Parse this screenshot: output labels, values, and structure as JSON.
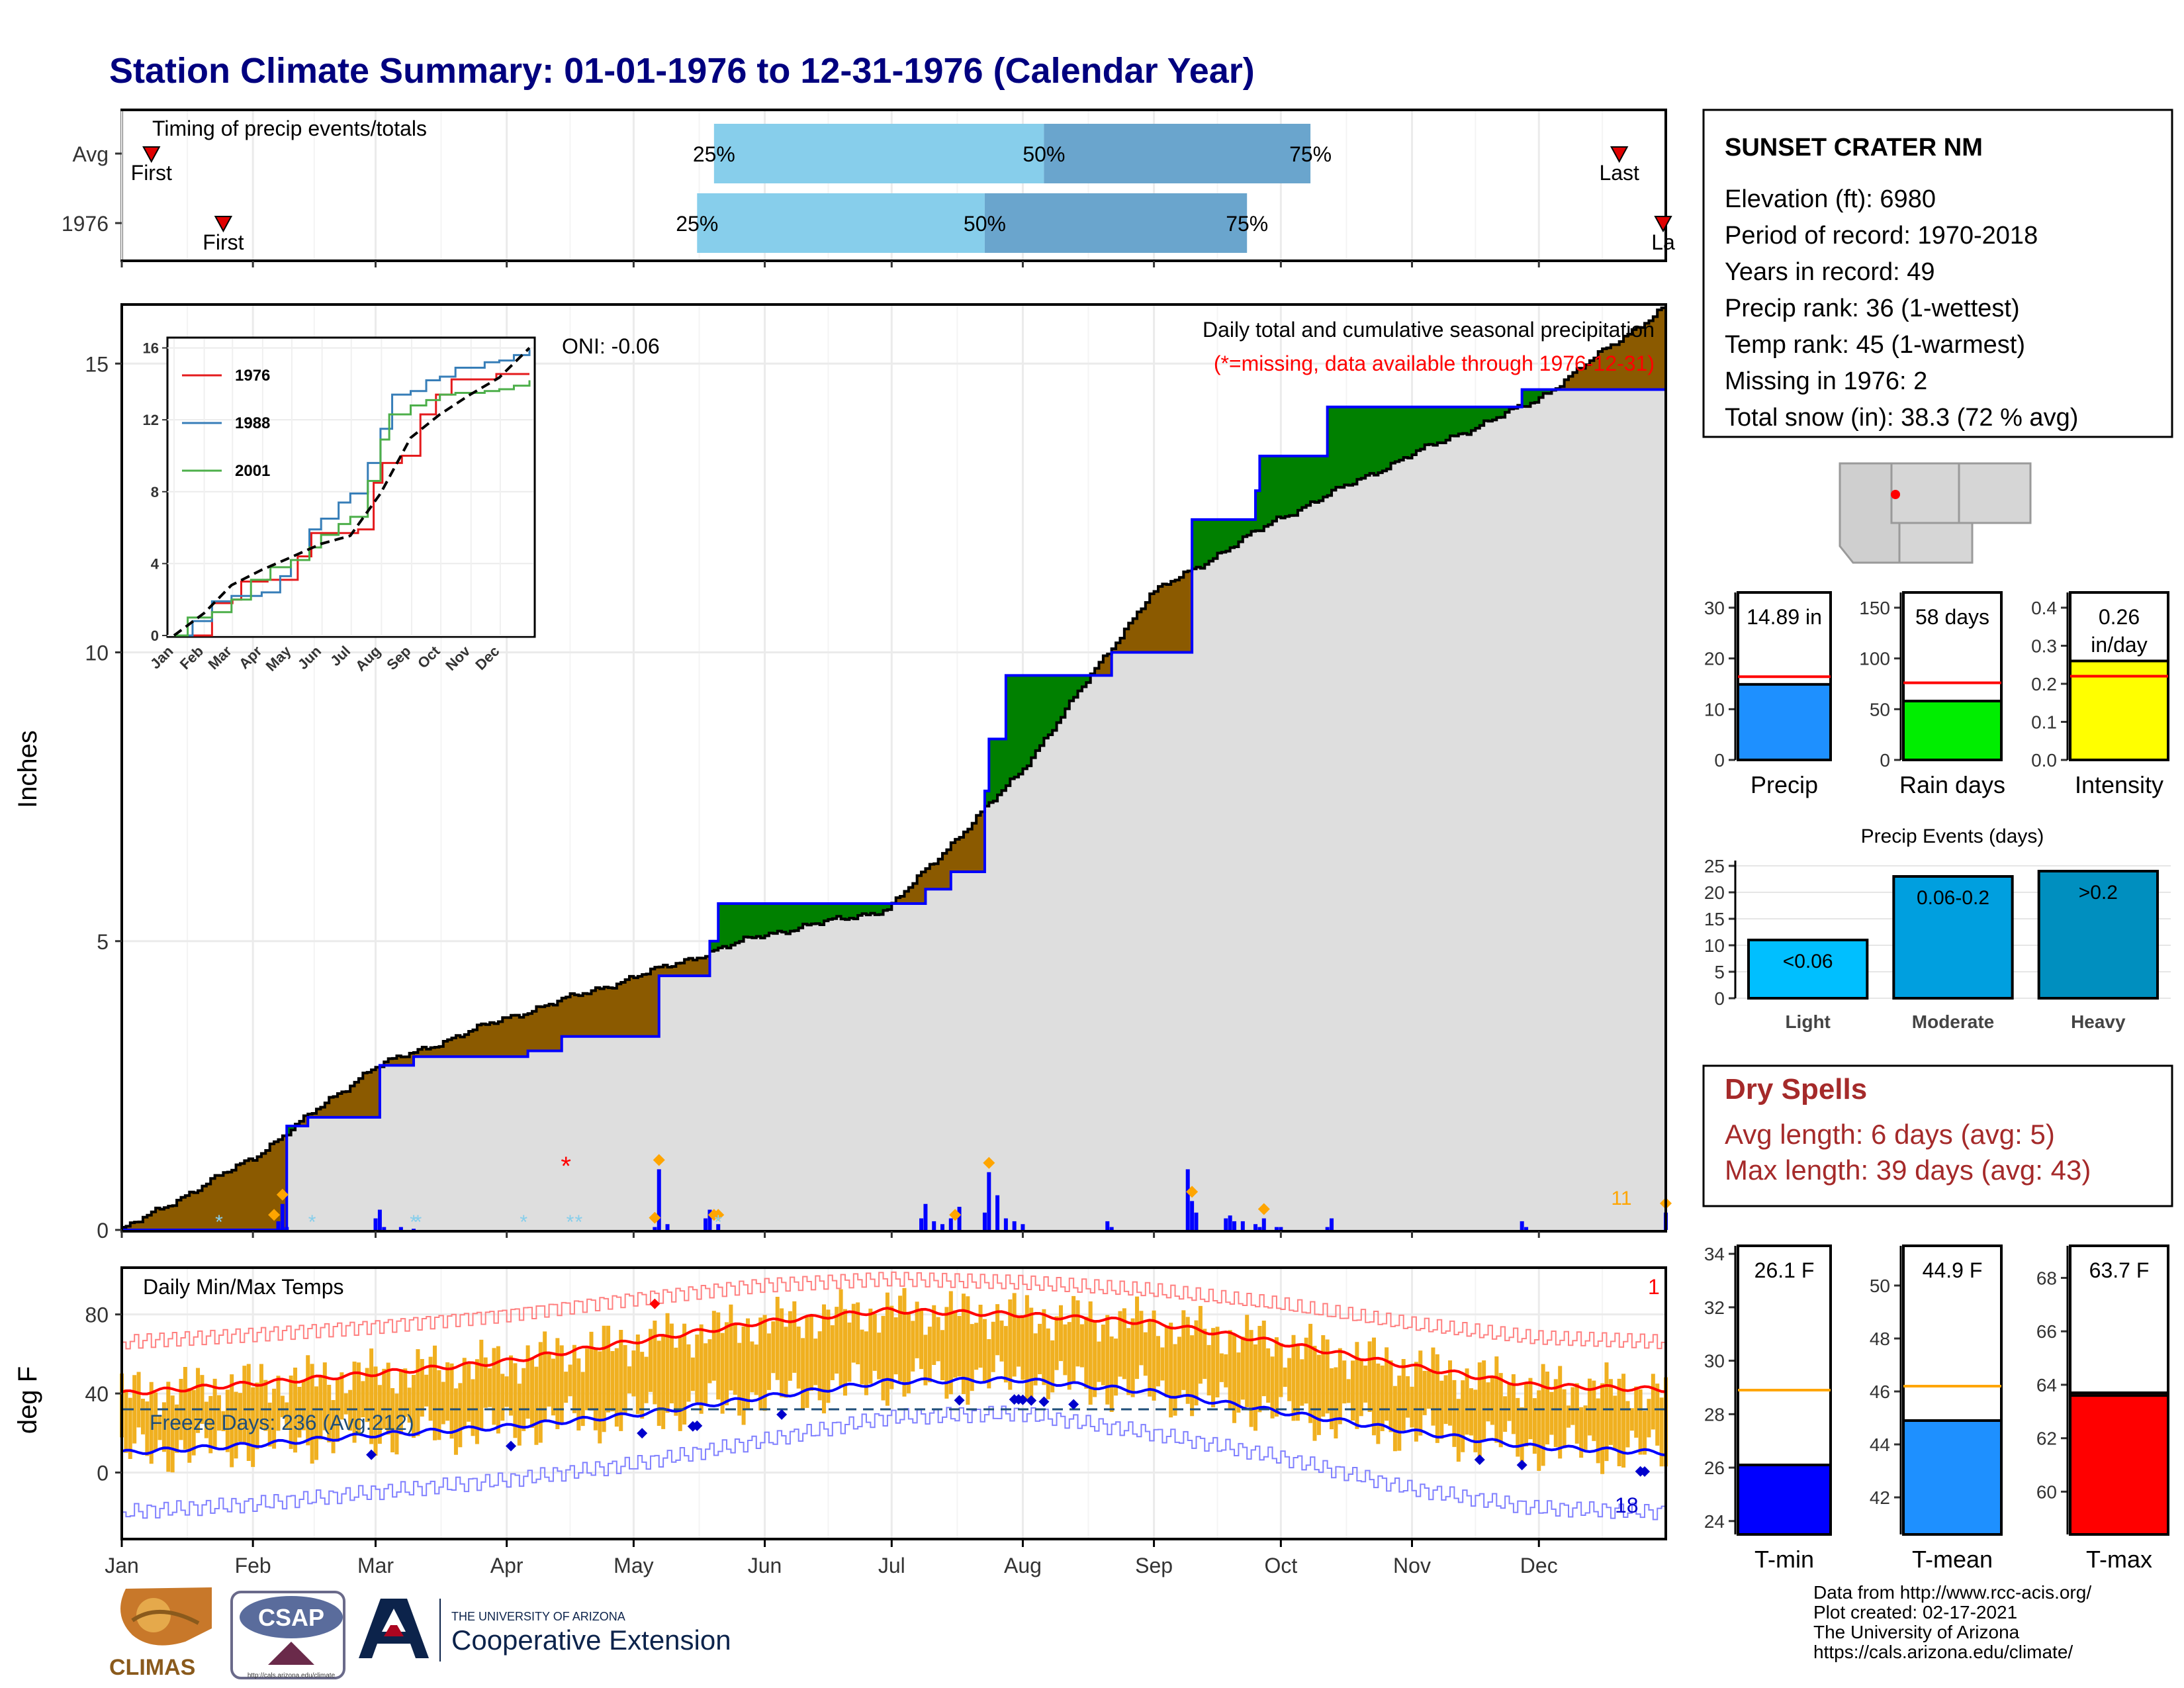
{
  "title": "Station Climate Summary: 01-01-1976 to 12-31-1976 (Calendar Year)",
  "months": [
    "Jan",
    "Feb",
    "Mar",
    "Apr",
    "May",
    "Jun",
    "Jul",
    "Aug",
    "Sep",
    "Oct",
    "Nov",
    "Dec"
  ],
  "station": {
    "name": "SUNSET CRATER NM",
    "lines": [
      "Elevation (ft): 6980",
      "Period of record: 1970-2018",
      "Years in record: 49",
      "Precip rank: 36 (1-wettest)",
      "Temp rank: 45 (1-warmest)",
      "Missing in 1976: 2",
      "Total snow (in): 38.3 (72 % avg)"
    ]
  },
  "dry_spells": {
    "title": "Dry Spells",
    "avg_length": "Avg length: 6 days (avg: 5)",
    "max_length": "Max length: 39 days (avg: 43)"
  },
  "footer": {
    "lines": [
      "Data from http://www.rcc-acis.org/",
      "Plot created: 02-17-2021",
      "The University of Arizona",
      "https://cals.arizona.edu/climate/"
    ]
  },
  "logos": {
    "climas": "CLIMAS",
    "csap": "CSAP",
    "csap_url": "http://cals.arizona.edu/climate",
    "ua_top": "THE UNIVERSITY OF ARIZONA",
    "ua_main": "Cooperative Extension"
  },
  "chart_data": [
    {
      "type": "bar",
      "name": "timing",
      "title": "Timing of precip events/totals",
      "rows": [
        {
          "label": "Avg",
          "first_day": 8,
          "p25": 141,
          "p50": 219,
          "p75": 282,
          "last_day": 355,
          "first_label": "First",
          "last_label": "Last",
          "p25_label": "25%",
          "p50_label": "50%",
          "p75_label": "75%"
        },
        {
          "label": "1976",
          "first_day": 25,
          "p25": 137,
          "p50": 205,
          "p75": 267,
          "last_day": 366,
          "first_label": "First",
          "last_label": "La",
          "p25_label": "25%",
          "p50_label": "50%",
          "p75_label": "75%"
        }
      ]
    },
    {
      "type": "area",
      "name": "cumulative-precip",
      "title": "Daily total and cumulative seasonal precipitation",
      "subtitle": "(*=missing, data available through 1976-12-31)",
      "ylabel": "Inches",
      "yticks": [
        0,
        5,
        10,
        15
      ],
      "ylim": [
        0,
        16.0
      ],
      "xlim": [
        1,
        366
      ],
      "oni": "ONI: -0.06",
      "avg_cum": {
        "x": [
          1,
          32,
          60,
          91,
          121,
          152,
          182,
          213,
          244,
          274,
          305,
          335,
          366
        ],
        "y": [
          0,
          1.25,
          2.8,
          3.65,
          4.35,
          5.1,
          5.55,
          7.9,
          11.0,
          12.3,
          13.4,
          14.35,
          16.0
        ]
      },
      "obs_cum": {
        "x": [
          1,
          38,
          40,
          45,
          61,
          62,
          70,
          96,
          97,
          105,
          127,
          128,
          139,
          140,
          142,
          190,
          191,
          197,
          205,
          206,
          210,
          215,
          225,
          234,
          235,
          253,
          254,
          262,
          269,
          270,
          274,
          285,
          286,
          301,
          302,
          331,
          332,
          366
        ],
        "y": [
          0,
          0,
          1.8,
          1.95,
          1.95,
          2.85,
          3.0,
          3.0,
          3.1,
          3.35,
          3.35,
          4.4,
          4.4,
          5.0,
          5.65,
          5.65,
          5.9,
          6.2,
          7.6,
          8.5,
          9.6,
          9.6,
          9.6,
          9.6,
          10.0,
          10.0,
          12.3,
          12.3,
          12.8,
          13.4,
          13.4,
          13.4,
          14.25,
          14.25,
          14.25,
          14.25,
          14.55,
          14.55
        ]
      },
      "daily": {
        "x": [
          38,
          39,
          40,
          61,
          62,
          63,
          67,
          70,
          127,
          128,
          130,
          139,
          140,
          142,
          190,
          191,
          193,
          195,
          197,
          199,
          205,
          206,
          208,
          210,
          212,
          214,
          234,
          235,
          253,
          254,
          255,
          262,
          263,
          264,
          266,
          269,
          270,
          271,
          274,
          275,
          286,
          287,
          332,
          333,
          366
        ],
        "y": [
          0.15,
          0.45,
          0.05,
          0.2,
          0.35,
          0.05,
          0.05,
          0.02,
          0.05,
          1.05,
          0.1,
          0.2,
          0.35,
          0.1,
          0.2,
          0.45,
          0.15,
          0.1,
          0.2,
          0.4,
          0.3,
          1.0,
          0.6,
          0.2,
          0.15,
          0.1,
          0.15,
          0.05,
          1.05,
          0.5,
          0.3,
          0.2,
          0.25,
          0.15,
          0.15,
          0.1,
          0.05,
          0.2,
          0.05,
          0.05,
          0.05,
          0.2,
          0.15,
          0.05,
          0.3
        ]
      },
      "snow_days": [
        24,
        46,
        70,
        71,
        96,
        107,
        109,
        142
      ],
      "missing_days": [
        106
      ],
      "extreme_days": [
        37,
        39,
        127,
        128,
        141,
        142,
        198,
        206,
        254,
        271,
        366
      ],
      "corner_count": "11",
      "inset": {
        "type": "line",
        "xticks": [
          "Jan",
          "Feb",
          "Mar",
          "Apr",
          "May",
          "Jun",
          "Jul",
          "Aug",
          "Sep",
          "Oct",
          "Nov",
          "Dec"
        ],
        "yticks": [
          0,
          4,
          8,
          12,
          16
        ],
        "ylim": [
          0,
          16.5
        ],
        "series": [
          {
            "name": "1976",
            "color": "#e41a1c",
            "x": [
              1,
              38,
              40,
              61,
              70,
              97,
              128,
              142,
              190,
              206,
              215,
              235,
              254,
              270,
              286,
              302,
              332,
              366
            ],
            "y": [
              0,
              0,
              1.8,
              2.0,
              3.0,
              3.1,
              4.4,
              5.7,
              5.9,
              8.5,
              9.6,
              10.0,
              12.3,
              13.4,
              14.25,
              14.25,
              14.55,
              14.55
            ]
          },
          {
            "name": "1988",
            "color": "#377eb8",
            "x": [
              1,
              20,
              40,
              60,
              91,
              110,
              121,
              140,
              152,
              170,
              182,
              200,
              213,
              225,
              244,
              260,
              274,
              290,
              305,
              320,
              335,
              350,
              366
            ],
            "y": [
              0,
              0.8,
              1.9,
              2.2,
              2.4,
              3.3,
              4.2,
              5.9,
              6.5,
              7.4,
              7.9,
              9.6,
              11.5,
              13.4,
              13.6,
              14.2,
              14.4,
              14.9,
              14.9,
              15.2,
              15.3,
              15.6,
              15.9
            ]
          },
          {
            "name": "2001",
            "color": "#4daf4a",
            "x": [
              1,
              15,
              40,
              60,
              80,
              100,
              121,
              140,
              152,
              170,
              182,
              200,
              213,
              222,
              244,
              260,
              274,
              290,
              305,
              320,
              335,
              350,
              366
            ],
            "y": [
              0,
              1.0,
              1.3,
              2.0,
              3.1,
              3.8,
              4.2,
              4.9,
              5.6,
              6.2,
              6.6,
              8.6,
              10.9,
              12.3,
              12.8,
              13.1,
              13.4,
              13.5,
              13.5,
              13.6,
              13.7,
              13.9,
              14.2
            ]
          }
        ],
        "avg": {
          "x": [
            1,
            32,
            60,
            91,
            121,
            152,
            182,
            213,
            244,
            274,
            305,
            335,
            366
          ],
          "y": [
            0,
            1.25,
            2.8,
            3.65,
            4.35,
            5.1,
            5.55,
            7.9,
            11.0,
            12.3,
            13.4,
            14.35,
            16.0
          ]
        }
      }
    },
    {
      "type": "line",
      "name": "daily-temps",
      "title": "Daily Min/Max Temps",
      "ylabel": "deg F",
      "yticks": [
        0,
        40,
        80
      ],
      "ylim": [
        -33,
        103
      ],
      "freeze_line": 32,
      "freeze_label": "Freeze Days: 236 (Avg:212)",
      "max_record_count": "1",
      "min_record_count": "18",
      "normal_max": {
        "x": [
          1,
          32,
          60,
          91,
          121,
          152,
          182,
          213,
          244,
          274,
          305,
          335,
          366
        ],
        "y": [
          40,
          45,
          50,
          56,
          66,
          76,
          82,
          80,
          76,
          66,
          54,
          44,
          42
        ]
      },
      "normal_min": {
        "x": [
          1,
          32,
          60,
          91,
          121,
          152,
          182,
          213,
          244,
          274,
          305,
          335,
          366
        ],
        "y": [
          10,
          14,
          19,
          23,
          29,
          38,
          46,
          47,
          41,
          31,
          21,
          13,
          10
        ]
      },
      "record_max": {
        "x": [
          1,
          32,
          60,
          91,
          121,
          152,
          182,
          213,
          244,
          274,
          305,
          335,
          366
        ],
        "y": [
          66,
          70,
          74,
          80,
          88,
          95,
          98,
          96,
          92,
          85,
          75,
          68,
          66
        ]
      },
      "record_min": {
        "x": [
          1,
          32,
          60,
          91,
          121,
          152,
          182,
          213,
          244,
          274,
          305,
          335,
          366
        ],
        "y": [
          -20,
          -16,
          -10,
          -4,
          4,
          16,
          28,
          30,
          20,
          8,
          -8,
          -18,
          -20
        ]
      }
    },
    {
      "type": "bar",
      "name": "precip-total",
      "categories": [
        "Precip"
      ],
      "values": [
        14.89
      ],
      "average": 16.4,
      "value_label": "14.89 in",
      "yticks": [
        0,
        10,
        20,
        30
      ],
      "ylim": [
        0,
        33
      ],
      "color": "#1e90ff"
    },
    {
      "type": "bar",
      "name": "rain-days",
      "categories": [
        "Rain days"
      ],
      "values": [
        58
      ],
      "average": 76,
      "value_label": "58 days",
      "yticks": [
        0,
        50,
        100,
        150
      ],
      "ylim": [
        0,
        165
      ],
      "color": "#00ee00"
    },
    {
      "type": "bar",
      "name": "intensity",
      "categories": [
        "Intensity"
      ],
      "values": [
        0.26
      ],
      "average": 0.22,
      "value_label": "0.26",
      "value_label_2": "in/day",
      "yticks": [
        0.0,
        0.1,
        0.2,
        0.3,
        0.4
      ],
      "ylim": [
        0,
        0.44
      ],
      "color": "#ffff00"
    },
    {
      "type": "bar",
      "name": "precip-events",
      "title": "Precip Events (days)",
      "categories": [
        "Light",
        "Moderate",
        "Heavy"
      ],
      "values": [
        11,
        23,
        24
      ],
      "value_labels": [
        "<0.06",
        "0.06-0.2",
        ">0.2"
      ],
      "colors": [
        "#00bfff",
        "#009fdf",
        "#008fbf"
      ],
      "yticks": [
        0,
        5,
        10,
        15,
        20,
        25
      ],
      "ylim": [
        0,
        26
      ]
    },
    {
      "type": "bar",
      "name": "t-min",
      "categories": [
        "T-min"
      ],
      "values": [
        26.1
      ],
      "average": 28.9,
      "value_label": "26.1 F",
      "yticks": [
        24,
        26,
        28,
        30,
        32,
        34
      ],
      "ylim": [
        23.5,
        34.3
      ],
      "color": "#0000ff"
    },
    {
      "type": "bar",
      "name": "t-mean",
      "categories": [
        "T-mean"
      ],
      "values": [
        44.9
      ],
      "average": 46.2,
      "value_label": "44.9 F",
      "yticks": [
        42,
        44,
        46,
        48,
        50
      ],
      "ylim": [
        40.6,
        51.5
      ],
      "color": "#1e90ff"
    },
    {
      "type": "bar",
      "name": "t-max",
      "categories": [
        "T-max"
      ],
      "values": [
        63.7
      ],
      "average": 63.6,
      "value_label": "63.7 F",
      "yticks": [
        60,
        62,
        64,
        66,
        68
      ],
      "ylim": [
        58.4,
        69.2
      ],
      "color": "#ff0000"
    }
  ]
}
